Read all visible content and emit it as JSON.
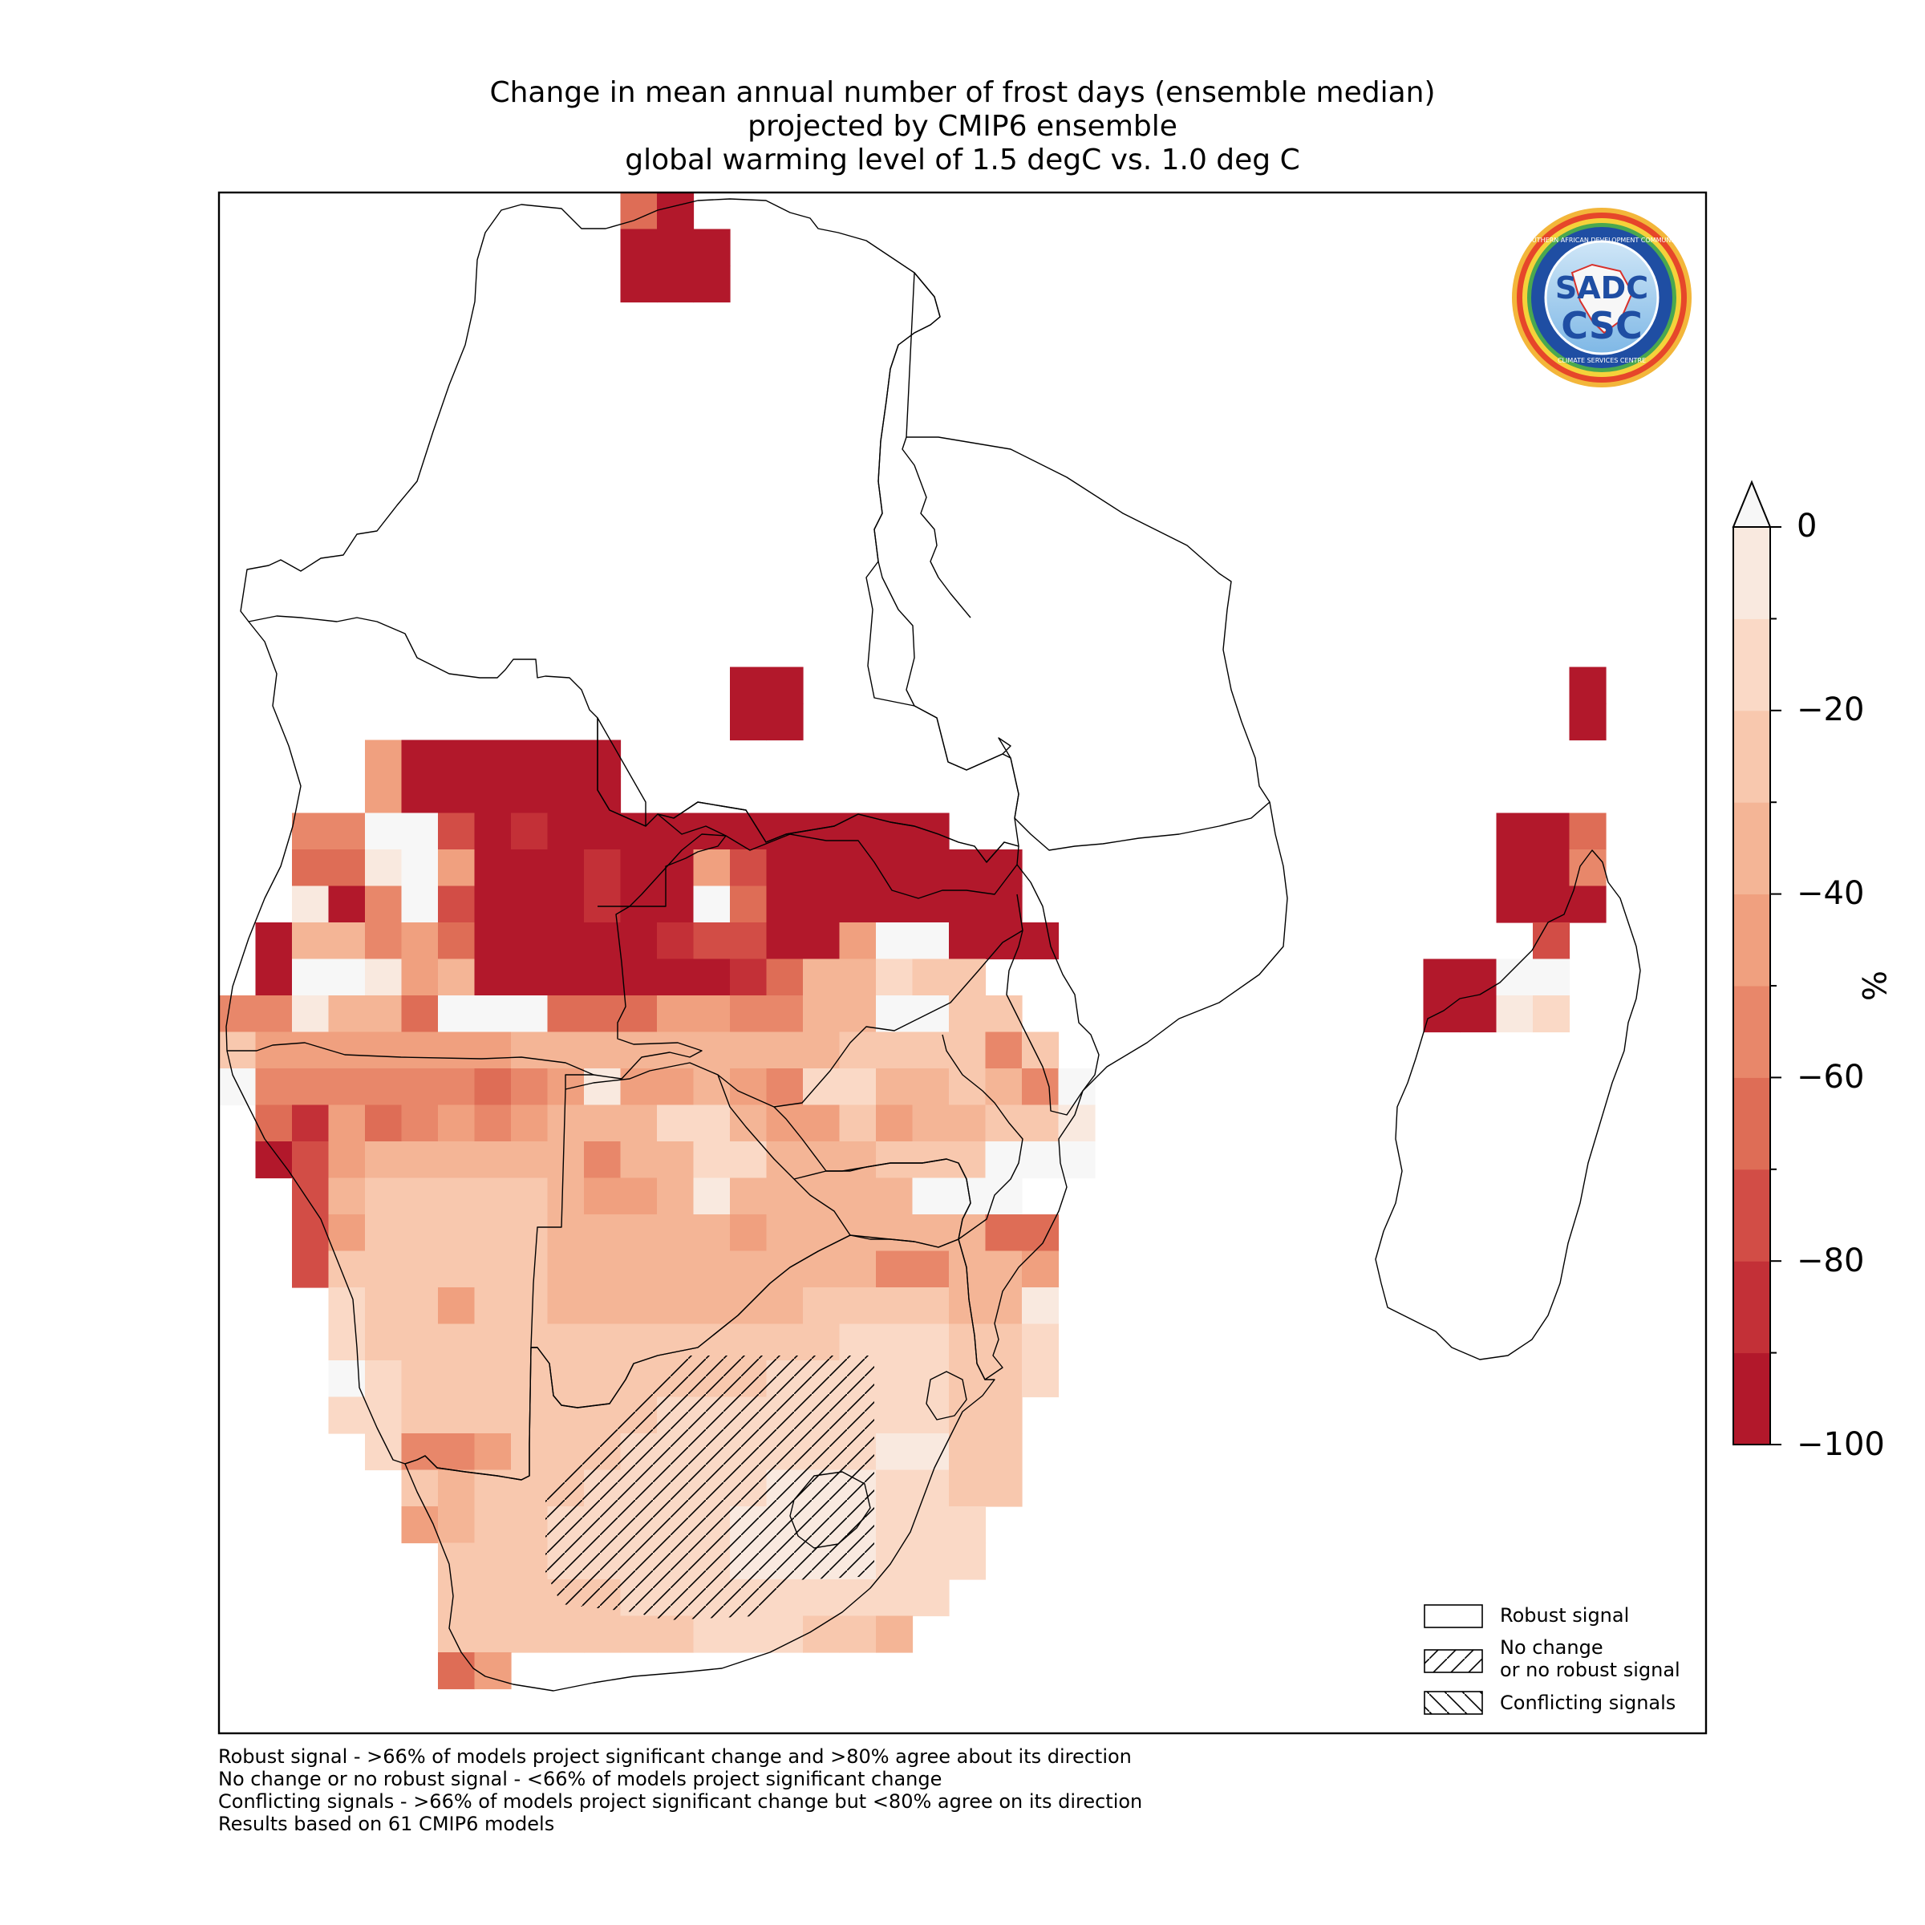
{
  "title": {
    "line1": "Change in mean annual number of frost days (ensemble median)",
    "line2": "projected by CMIP6 ensemble",
    "line3": "global warming level of 1.5 degC vs. 1.0 deg C"
  },
  "logo": {
    "ring_text_top": "SOUTHERN AFRICAN DEVELOPMENT COMMUNITY",
    "ring_text_bottom": "CLIMATE SERVICES CENTRE",
    "mark_top": "SADC",
    "mark_bottom": "CSC"
  },
  "colorbar": {
    "unit": "%",
    "tick_labels": [
      "0",
      "−20",
      "−40",
      "−60",
      "−80",
      "−100"
    ],
    "vmin": -100,
    "vmax": 0,
    "extend": "max",
    "colors": [
      "#b2182b",
      "#c33037",
      "#d24d46",
      "#de6d56",
      "#e8876a",
      "#f0a07f",
      "#f4b596",
      "#f8c8ae",
      "#fad9c6",
      "#f9e9df",
      "#f7f7f7"
    ]
  },
  "legend": {
    "robust": "Robust signal",
    "no_change_line1": "No change",
    "no_change_line2": "or no robust signal",
    "conflicting": "Conflicting signals"
  },
  "footnotes": [
    "Robust signal - >66% of models project significant change and >80% agree about its direction",
    "No change or no robust signal - <66% of models project significant change",
    "Conflicting signals - >66% of models project significant change but <80% agree on its direction",
    "Results based on 61 CMIP6 models"
  ],
  "colors": {
    "frame": "#000000",
    "border": "#000000",
    "logo_ring": "#e6462a",
    "logo_blue": "#1f4ea3"
  }
}
